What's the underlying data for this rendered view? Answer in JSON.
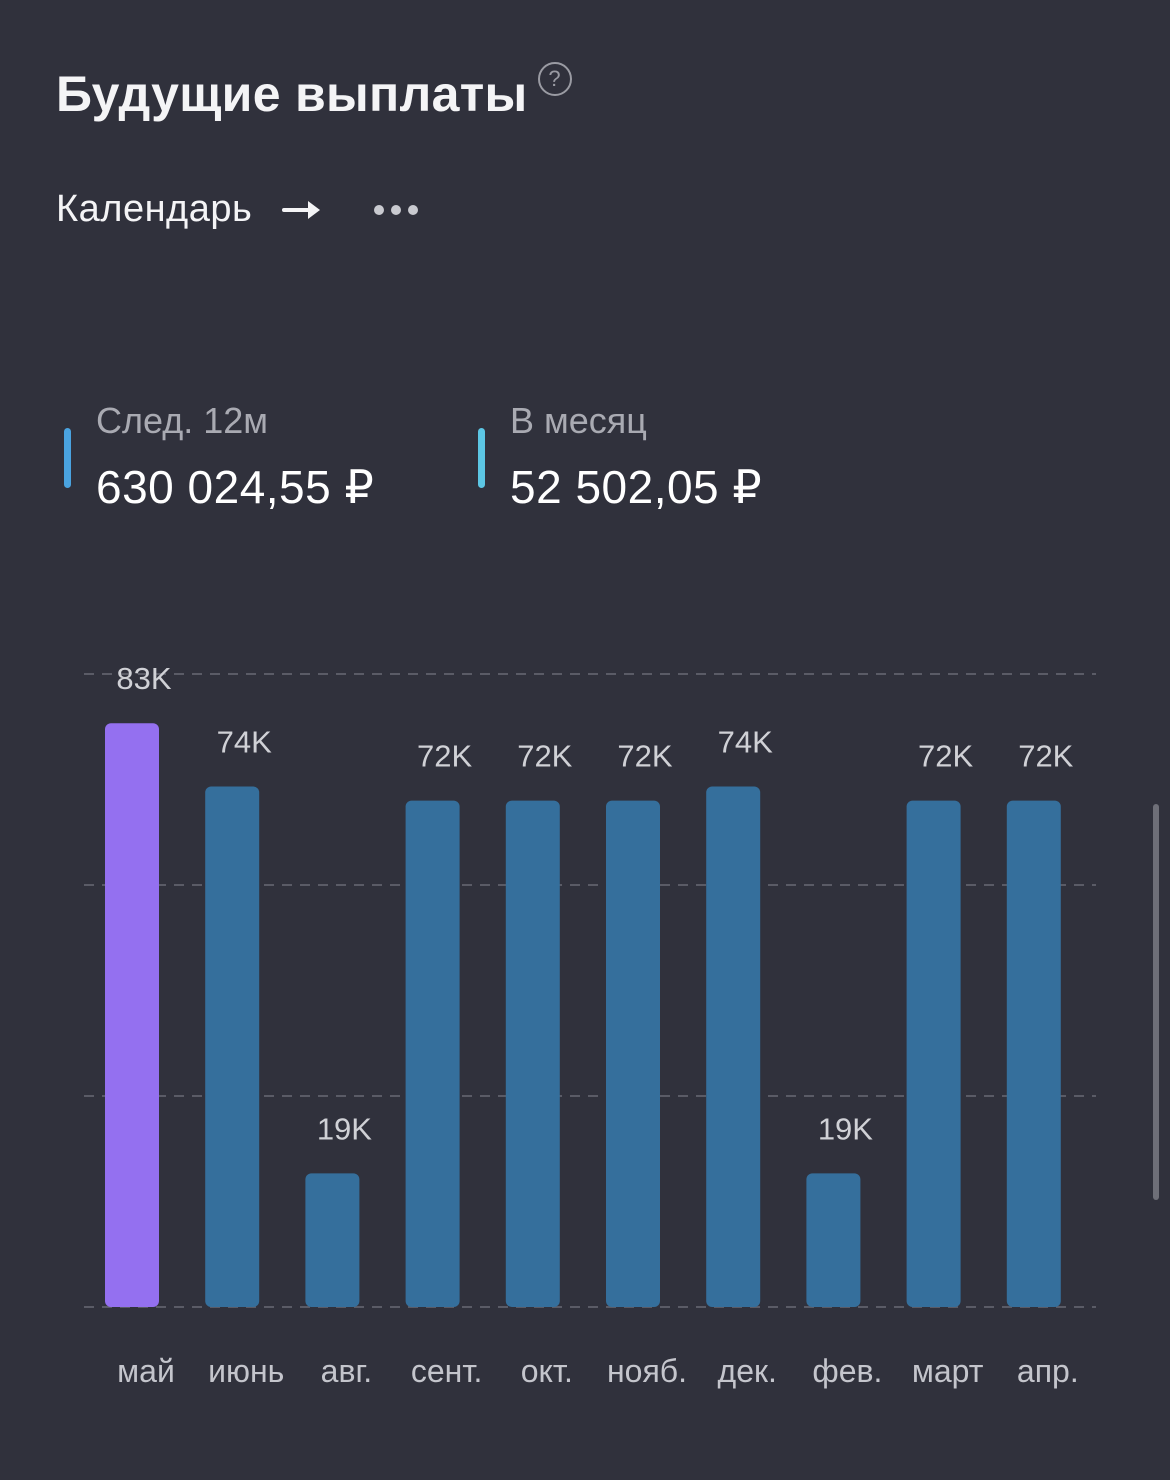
{
  "header": {
    "title": "Будущие выплаты",
    "help_glyph": "?",
    "icons": [
      "help-circle-icon",
      "arrow-right-icon",
      "more-horizontal-icon"
    ]
  },
  "nav": {
    "calendar_label": "Календарь"
  },
  "stats": [
    {
      "label": "След. 12м",
      "value": "630 024,55 ₽",
      "color": "#4aa3e0"
    },
    {
      "label": "В месяц",
      "value": "52 502,05 ₽",
      "color": "#5cc6e4"
    }
  ],
  "chart_data": {
    "type": "bar",
    "categories": [
      "май",
      "июнь",
      "авг.",
      "сент.",
      "окт.",
      "нояб.",
      "дек.",
      "фев.",
      "март",
      "апр."
    ],
    "values": [
      83,
      74,
      19,
      72,
      72,
      72,
      74,
      19,
      72,
      72
    ],
    "value_labels": [
      "83K",
      "74K",
      "19K",
      "72K",
      "72K",
      "72K",
      "74K",
      "19K",
      "72K",
      "72K"
    ],
    "ylim": [
      0,
      90
    ],
    "grid": true,
    "colors": {
      "highlight": "#9470f0",
      "bar": "#356f9c",
      "grid": "#5a5b66",
      "label": "#d0d1d6",
      "axis_label": "#c4c5cc"
    },
    "highlight_index": 0
  }
}
